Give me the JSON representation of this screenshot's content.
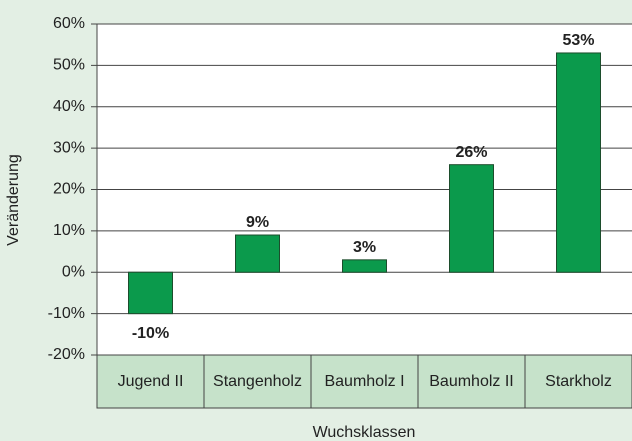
{
  "chart_data": {
    "type": "bar",
    "categories": [
      "Jugend II",
      "Stangenholz",
      "Baumholz I",
      "Baumholz II",
      "Starkholz"
    ],
    "values": [
      -10,
      9,
      3,
      26,
      53
    ],
    "value_labels": [
      "-10%",
      "9%",
      "3%",
      "26%",
      "53%"
    ],
    "color": "#0b9a4c",
    "ylabel": "Veränderung",
    "xlabel": "Wuchsklassen",
    "ylim": [
      -20,
      60
    ],
    "yticks": [
      {
        "value": -20,
        "label": "-20%"
      },
      {
        "value": -10,
        "label": "-10%"
      },
      {
        "value": 0,
        "label": "0%"
      },
      {
        "value": 10,
        "label": "10%"
      },
      {
        "value": 20,
        "label": "20%"
      },
      {
        "value": 30,
        "label": "30%"
      },
      {
        "value": 40,
        "label": "40%"
      },
      {
        "value": 50,
        "label": "50%"
      },
      {
        "value": 60,
        "label": "60%"
      }
    ],
    "grid": true
  }
}
